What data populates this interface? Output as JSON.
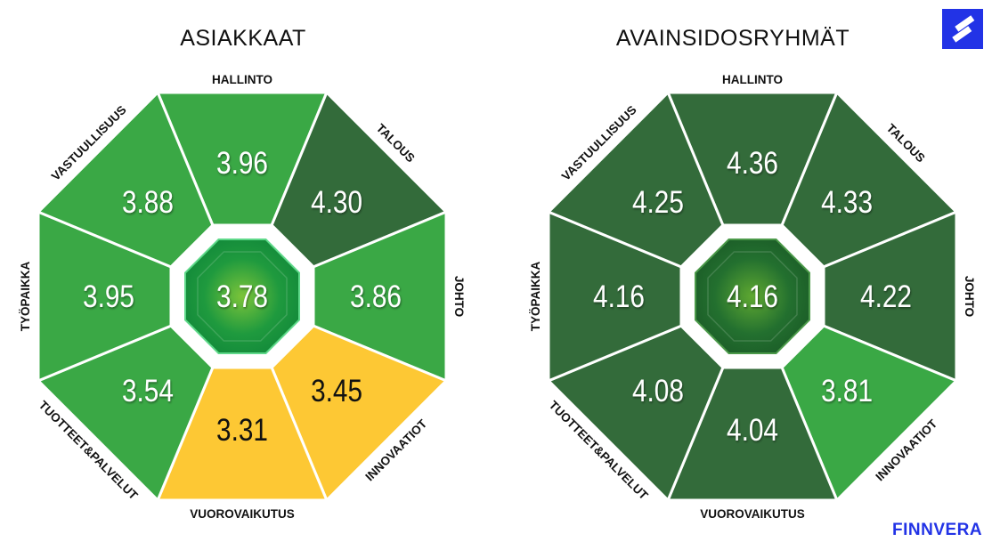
{
  "charts": [
    {
      "title": "ASIAKKAAT",
      "center_value": "3.78",
      "segments": [
        {
          "label": "HALLINTO",
          "value": "3.96",
          "color": "#3aa845"
        },
        {
          "label": "TALOUS",
          "value": "4.30",
          "color": "#336b3a"
        },
        {
          "label": "JOHTO",
          "value": "3.86",
          "color": "#3aa845"
        },
        {
          "label": "INNOVAATIOT",
          "value": "3.45",
          "color": "#fdc834"
        },
        {
          "label": "VUOROVAIKUTUS",
          "value": "3.31",
          "color": "#fdc834"
        },
        {
          "label": "TUOTTEET&PALVELUT",
          "value": "3.54",
          "color": "#3aa845"
        },
        {
          "label": "TYÖPAIKKA",
          "value": "3.95",
          "color": "#3aa845"
        },
        {
          "label": "VASTUULLISUUS",
          "value": "3.88",
          "color": "#3aa845"
        }
      ]
    },
    {
      "title": "AVAINSIDOSRYHMÄT",
      "center_value": "4.16",
      "segments": [
        {
          "label": "HALLINTO",
          "value": "4.36",
          "color": "#336b3a"
        },
        {
          "label": "TALOUS",
          "value": "4.33",
          "color": "#336b3a"
        },
        {
          "label": "JOHTO",
          "value": "4.22",
          "color": "#336b3a"
        },
        {
          "label": "INNOVAATIOT",
          "value": "3.81",
          "color": "#3aa845"
        },
        {
          "label": "VUOROVAIKUTUS",
          "value": "4.04",
          "color": "#336b3a"
        },
        {
          "label": "TUOTTEET&PALVELUT",
          "value": "4.08",
          "color": "#336b3a"
        },
        {
          "label": "TYÖPAIKKA",
          "value": "4.16",
          "color": "#336b3a"
        },
        {
          "label": "VASTUULLISUUS",
          "value": "4.25",
          "color": "#336b3a"
        }
      ]
    }
  ],
  "brand": "FINNVERA"
}
